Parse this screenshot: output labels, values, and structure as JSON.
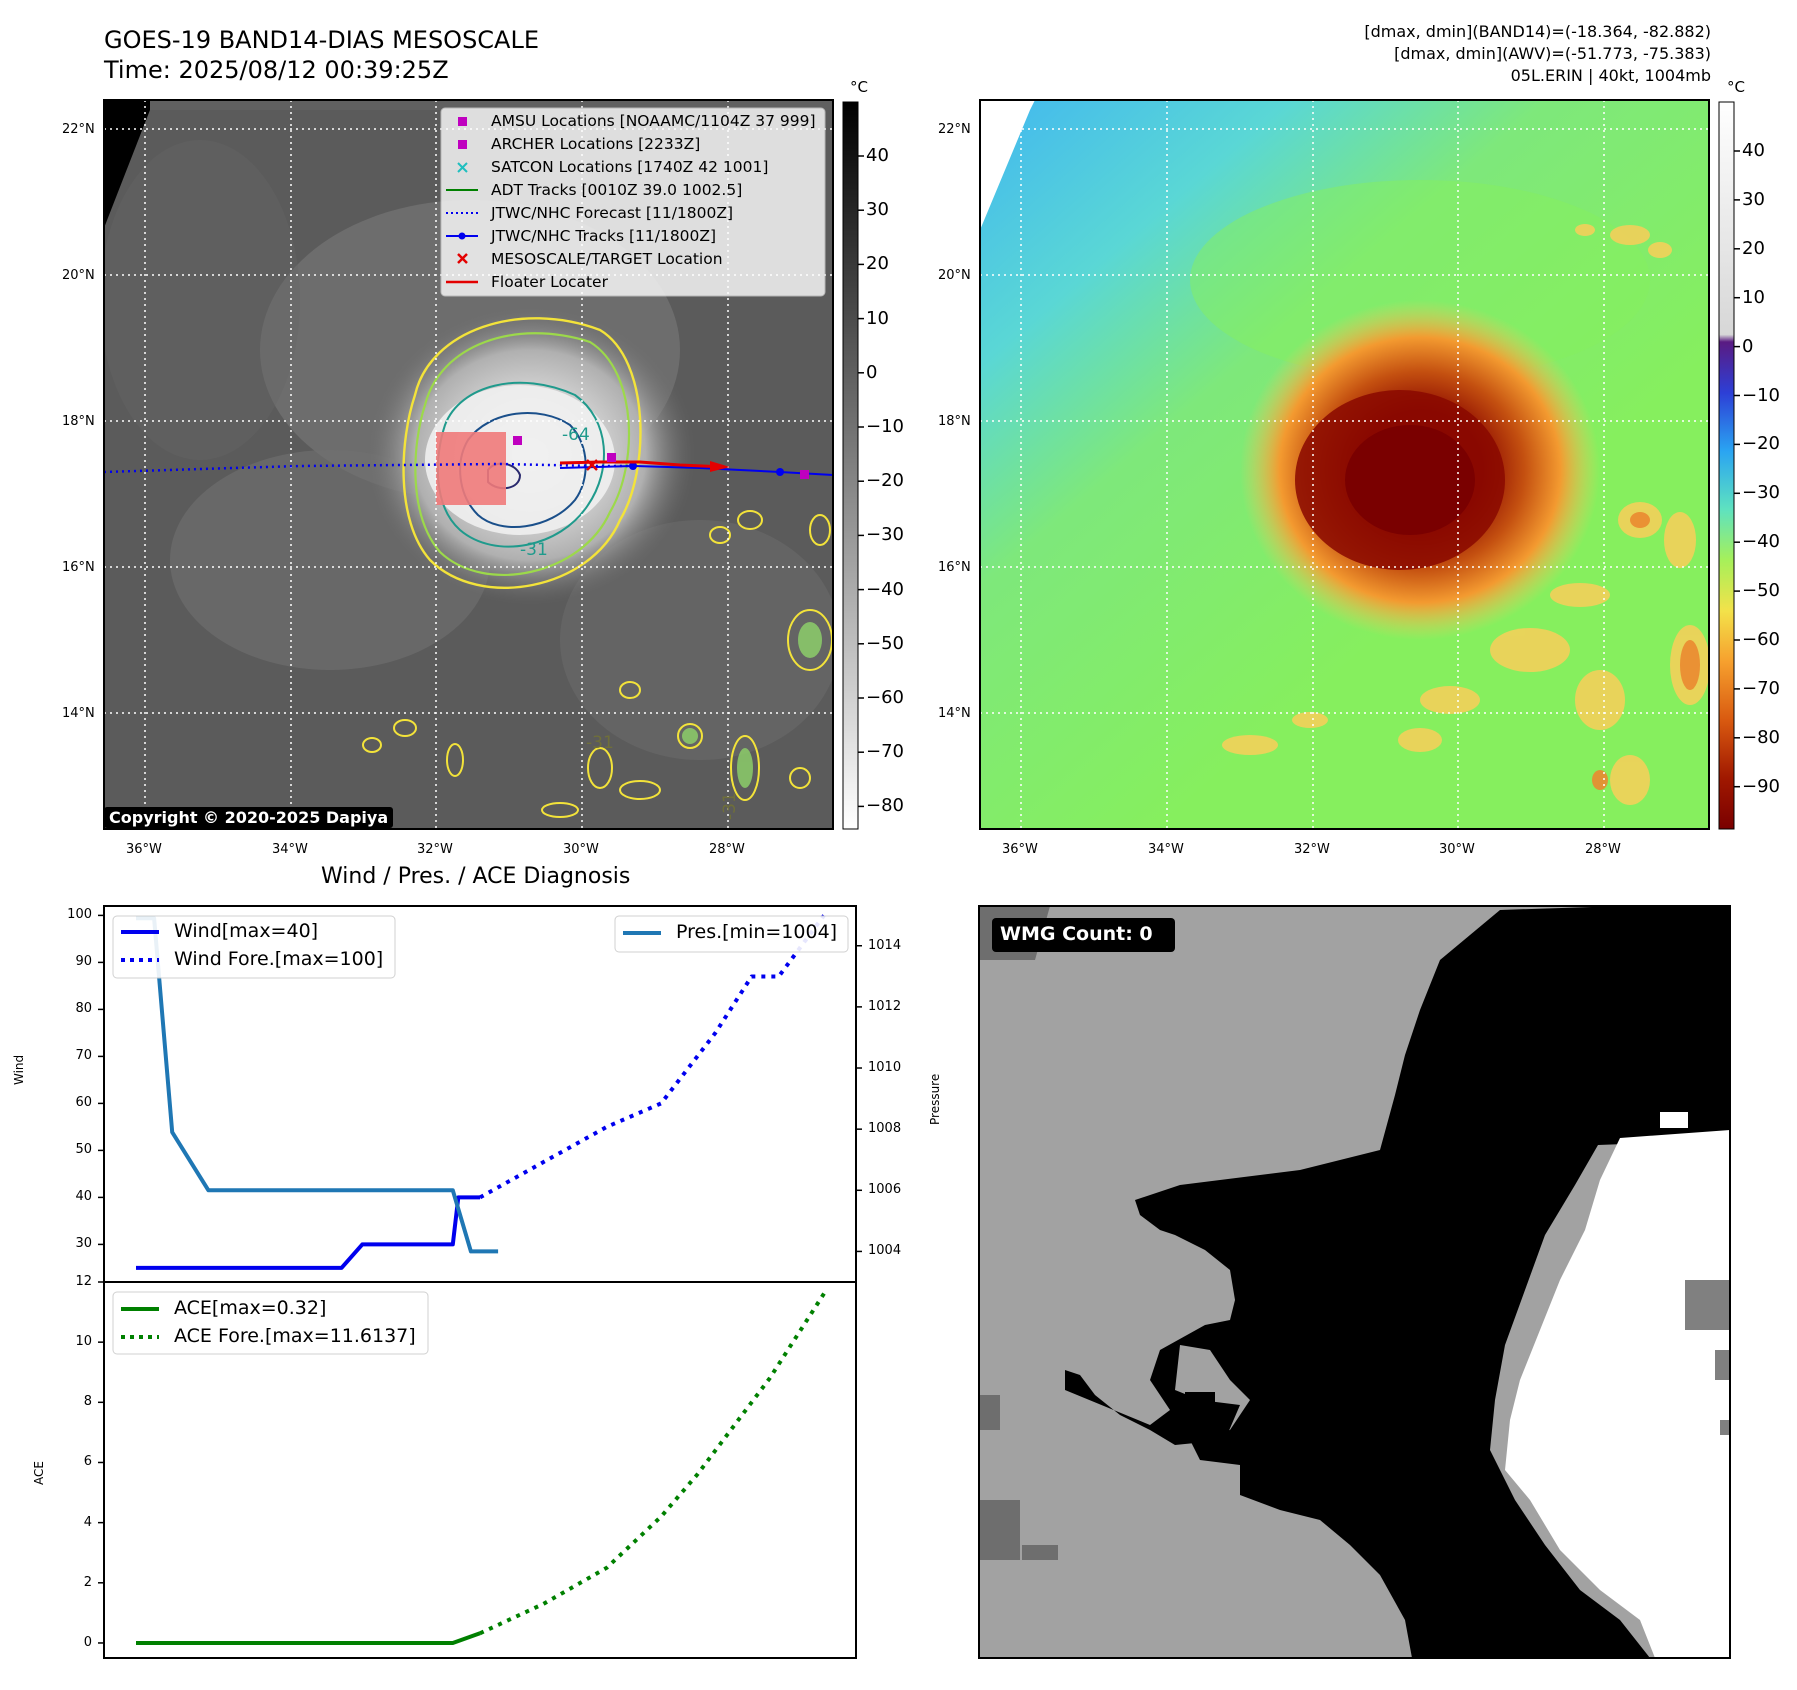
{
  "header": {
    "title_line1": "GOES-19 BAND14-DIAS MESOSCALE",
    "title_line2": "Time: 2025/08/12 00:39:25Z",
    "info_line1": "[dmax, dmin](BAND14)=(-18.364, -82.882)",
    "info_line2": "[dmax, dmin](AWV)=(-51.773, -75.383)",
    "info_line3": "05L.ERIN | 40kt, 1004mb"
  },
  "map_axes": {
    "lat_labels": [
      "22°N",
      "20°N",
      "18°N",
      "16°N",
      "14°N"
    ],
    "lon_labels": [
      "36°W",
      "34°W",
      "32°W",
      "30°W",
      "28°W"
    ]
  },
  "left_map": {
    "copyright": "Copyright © 2020-2025 Dapiya",
    "contour_labels": [
      "-64",
      "-31",
      "-31",
      "-31"
    ],
    "legend": [
      {
        "label": "AMSU Locations [NOAAMC/1104Z 37 999]",
        "color": "#bf00bf",
        "marker": "square"
      },
      {
        "label": "ARCHER Locations [2233Z]",
        "color": "#bf00bf",
        "marker": "square"
      },
      {
        "label": "SATCON Locations [1740Z 42 1001]",
        "color": "#1fbfbf",
        "marker": "x"
      },
      {
        "label": "ADT Tracks [0010Z 39.0 1002.5]",
        "color": "#008000",
        "marker": "line"
      },
      {
        "label": "JTWC/NHC Forecast [11/1800Z]",
        "color": "#0000ff",
        "marker": "dotted"
      },
      {
        "label": "JTWC/NHC Tracks [11/1800Z]",
        "color": "#0000ff",
        "marker": "line-dot"
      },
      {
        "label": "MESOSCALE/TARGET Location",
        "color": "#ff0000",
        "marker": "x"
      },
      {
        "label": "Floater Locater",
        "color": "#ff0000",
        "marker": "line"
      }
    ]
  },
  "colorbar_left": {
    "unit": "°C",
    "ticks": [
      "40",
      "30",
      "20",
      "10",
      "0",
      "−10",
      "−20",
      "−30",
      "−40",
      "−50",
      "−60",
      "−70",
      "−80"
    ]
  },
  "colorbar_right": {
    "unit": "°C",
    "ticks": [
      "40",
      "30",
      "20",
      "10",
      "0",
      "−10",
      "−20",
      "−30",
      "−40",
      "−50",
      "−60",
      "−70",
      "−80",
      "−90"
    ]
  },
  "wmg_panel": {
    "label": "WMG Count: 0"
  },
  "chart_data": [
    {
      "type": "line",
      "title": "Wind / Pres. / ACE Diagnosis",
      "ylabel": "Wind",
      "ylabel_right": "Pressure",
      "ylim": [
        22,
        102
      ],
      "ylim_right": [
        1003,
        1015.3
      ],
      "yticks": [
        30,
        40,
        50,
        60,
        70,
        80,
        90,
        100
      ],
      "yticks_right": [
        1004,
        1006,
        1008,
        1010,
        1012,
        1014
      ],
      "legend_left": [
        "Wind[max=40]",
        "Wind Fore.[max=100]"
      ],
      "legend_right": [
        "Pres.[min=1004]"
      ],
      "series": [
        {
          "name": "Wind[max=40]",
          "color": "#0000ee",
          "style": "solid",
          "x": [
            0,
            22,
            22.7,
            25,
            35,
            35.6,
            38
          ],
          "values": [
            25,
            25,
            25,
            30,
            30,
            40,
            40
          ]
        },
        {
          "name": "Wind Fore.[max=100]",
          "color": "#0000ee",
          "style": "dotted",
          "x": [
            38,
            52,
            58,
            60,
            64,
            68,
            71,
            76
          ],
          "values": [
            40,
            55,
            60,
            65,
            75,
            87,
            87,
            100
          ]
        },
        {
          "name": "Pres.[min=1004]",
          "color": "#1f77b4",
          "style": "solid",
          "axis": "right",
          "x": [
            0,
            2,
            4,
            8,
            35,
            37,
            40
          ],
          "values": [
            1014.9,
            1014.9,
            1007.9,
            1006,
            1006,
            1004,
            1004
          ]
        }
      ]
    },
    {
      "type": "line",
      "ylabel": "ACE",
      "ylim": [
        -0.5,
        12
      ],
      "yticks": [
        0,
        2,
        4,
        6,
        8,
        10,
        12
      ],
      "legend": [
        "ACE[max=0.32]",
        "ACE Fore.[max=11.6137]"
      ],
      "series": [
        {
          "name": "ACE[max=0.32]",
          "color": "#008000",
          "style": "solid",
          "x": [
            0,
            35,
            38
          ],
          "values": [
            0,
            0,
            0.32
          ]
        },
        {
          "name": "ACE Fore.[max=11.6137]",
          "color": "#008000",
          "style": "dotted",
          "x": [
            38,
            45,
            52,
            58,
            62,
            66,
            70,
            76
          ],
          "values": [
            0.32,
            1.3,
            2.5,
            4.2,
            5.6,
            7.2,
            8.8,
            11.6137
          ]
        }
      ]
    }
  ]
}
